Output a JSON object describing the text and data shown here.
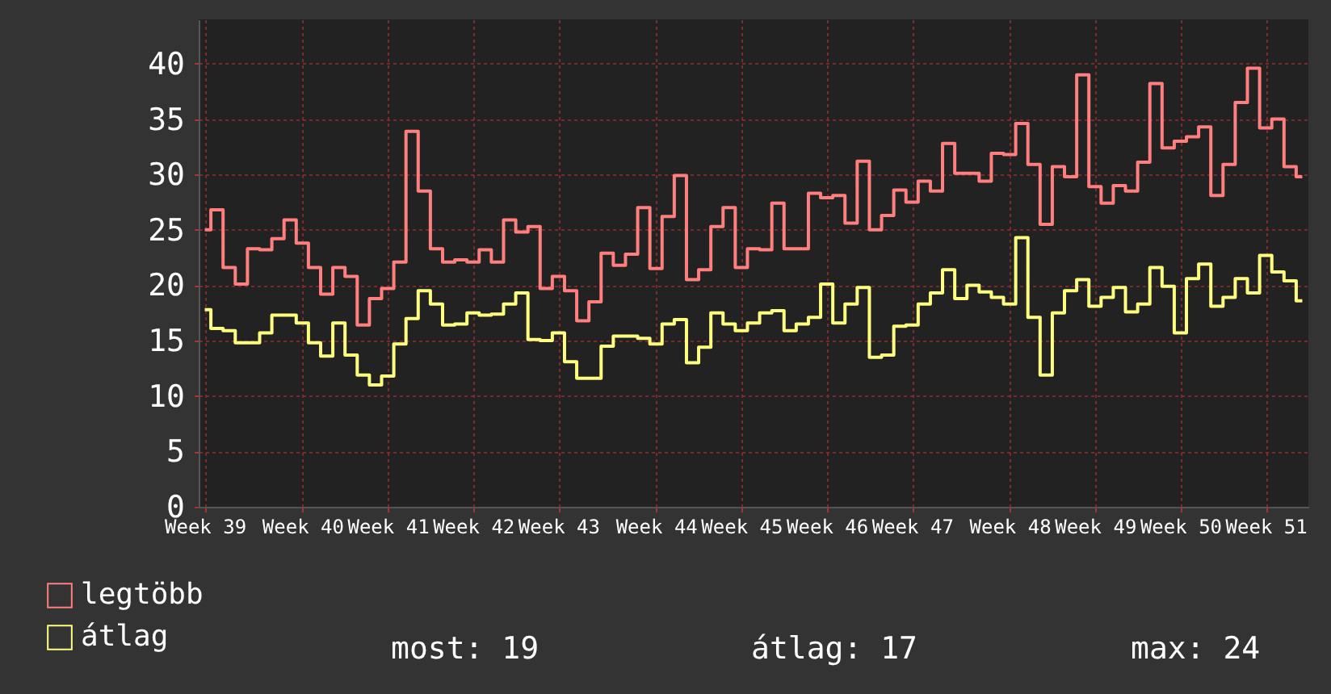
{
  "chart_data": {
    "type": "step",
    "categories": [
      "Week 39",
      null,
      null,
      null,
      null,
      null,
      null,
      null,
      "Week 40",
      null,
      null,
      null,
      null,
      null,
      null,
      "Week 41",
      null,
      null,
      null,
      null,
      null,
      null,
      "Week 42",
      null,
      null,
      null,
      null,
      null,
      null,
      "Week 43",
      null,
      null,
      null,
      null,
      null,
      null,
      null,
      "Week 44",
      null,
      null,
      null,
      null,
      null,
      null,
      "Week 45",
      null,
      null,
      null,
      null,
      null,
      null,
      "Week 46",
      null,
      null,
      null,
      null,
      null,
      null,
      "Week 47",
      null,
      null,
      null,
      null,
      null,
      null,
      null,
      "Week 48",
      null,
      null,
      null,
      null,
      null,
      null,
      "Week 49",
      null,
      null,
      null,
      null,
      null,
      null,
      "Week 50",
      null,
      null,
      null,
      null,
      null,
      null,
      "Week 51",
      null,
      null,
      null
    ],
    "series": [
      {
        "name": "legtöbb",
        "color": "#ff7f7f",
        "values": [
          25,
          26.8,
          21.6,
          20.1,
          23.3,
          23.2,
          24.2,
          25.9,
          23.8,
          21.6,
          19.2,
          21.6,
          20.8,
          16.4,
          18.8,
          19.7,
          22.1,
          33.9,
          28.5,
          23.3,
          22.1,
          22.3,
          22.1,
          23.2,
          22.1,
          25.9,
          24.8,
          25.3,
          19.7,
          20.8,
          19.5,
          16.8,
          18.5,
          22.9,
          21.8,
          22.8,
          27.0,
          21.5,
          26.2,
          29.9,
          20.5,
          21.4,
          25.3,
          27.0,
          21.6,
          23.3,
          23.2,
          27.4,
          23.3,
          23.3,
          28.3,
          27.9,
          28.1,
          25.6,
          31.2,
          25.0,
          26.3,
          28.6,
          27.5,
          29.4,
          28.5,
          32.8,
          30.1,
          30.1,
          29.4,
          31.9,
          31.8,
          34.6,
          30.9,
          25.5,
          30.7,
          29.8,
          39.0,
          28.9,
          27.4,
          29.0,
          28.5,
          31.1,
          38.2,
          32.4,
          33.0,
          33.4,
          34.3,
          28.1,
          30.9,
          36.5,
          39.6,
          34.2,
          35.0,
          30.7,
          29.8
        ]
      },
      {
        "name": "átlag",
        "color": "#ffff7f",
        "values": [
          17.8,
          16.1,
          15.9,
          14.8,
          14.8,
          15.7,
          17.3,
          17.3,
          16.6,
          14.8,
          13.6,
          16.6,
          13.7,
          11.9,
          11.0,
          11.8,
          14.7,
          17.0,
          19.5,
          18.3,
          16.4,
          16.5,
          17.5,
          17.3,
          17.4,
          18.3,
          19.3,
          15.1,
          15.0,
          15.7,
          13.1,
          11.6,
          11.6,
          14.5,
          15.4,
          15.4,
          15.2,
          14.7,
          16.5,
          16.9,
          13.0,
          14.4,
          17.5,
          16.5,
          15.9,
          16.6,
          17.5,
          17.7,
          15.9,
          16.5,
          17.1,
          20.1,
          16.6,
          18.3,
          19.8,
          13.5,
          13.7,
          16.3,
          16.4,
          18.3,
          19.3,
          21.4,
          18.8,
          20.0,
          19.4,
          18.9,
          18.3,
          24.3,
          17.1,
          11.9,
          17.5,
          19.5,
          20.5,
          18.1,
          18.9,
          19.8,
          17.6,
          18.3,
          21.6,
          19.9,
          15.7,
          20.6,
          21.9,
          18.1,
          18.9,
          20.6,
          19.3,
          22.7,
          21.2,
          20.4,
          18.6
        ]
      }
    ],
    "ylim": [
      0,
      44
    ],
    "yticks": [
      0,
      5,
      10,
      15,
      20,
      25,
      30,
      35,
      40
    ],
    "grid": true,
    "legend": "bottom",
    "annotations": [
      "most: 19",
      "átlag: 17",
      "max: 24"
    ]
  }
}
